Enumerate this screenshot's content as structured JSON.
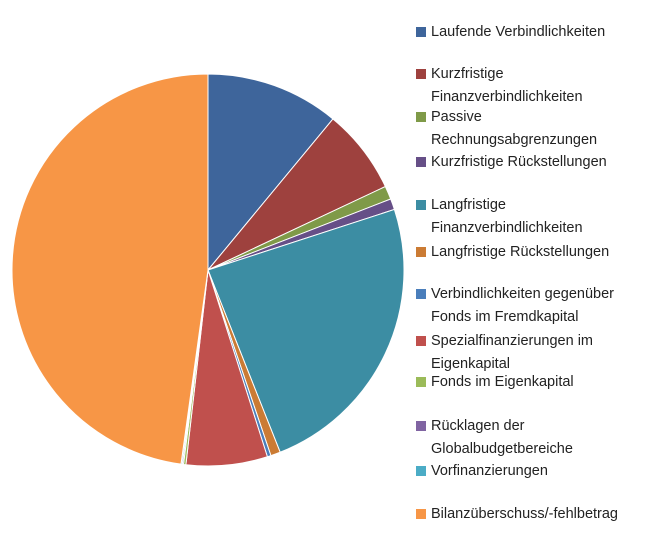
{
  "chart_data": {
    "type": "pie",
    "categories": [
      "Laufende Verbindlichkeiten",
      "Kurzfristige Finanzverbindlichkeiten",
      "Passive Rechnungsabgrenzungen",
      "Kurzfristige Rückstellungen",
      "Langfristige Finanzverbindlichkeiten",
      "Langfristige Rückstellungen",
      "Verbindlichkeiten gegenüber Fonds im Fremdkapital",
      "Spezialfinanzierungen im Eigenkapital",
      "Fonds im Eigenkapital",
      "Rücklagen der Globalbudgetbereiche",
      "Vorfinanzierungen",
      "Bilanzüberschuss/-fehlbetrag"
    ],
    "values": [
      11,
      7,
      1.1,
      0.9,
      24,
      0.8,
      0.3,
      6.7,
      0.2,
      0.1,
      0.1,
      47.8
    ],
    "colors": [
      "#3e659b",
      "#9e413e",
      "#7f9a48",
      "#664f87",
      "#3c8da3",
      "#cb7b34",
      "#4a7ebb",
      "#c0504d",
      "#9bbb59",
      "#8064a2",
      "#4bacc6",
      "#f79646"
    ],
    "legend": "right"
  }
}
